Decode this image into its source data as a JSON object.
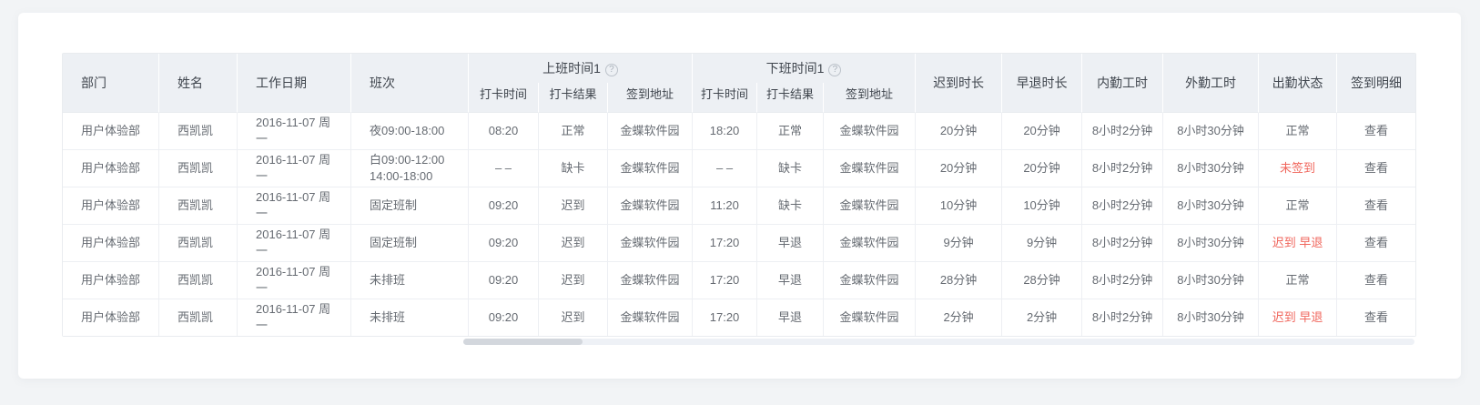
{
  "colors": {
    "page_bg": "#f2f4f6",
    "card_bg": "#ffffff",
    "header_bg": "#edf0f4",
    "header_text": "#3f454d",
    "body_text": "#666b72",
    "status_red": "#f0665c",
    "border": "#e9ecef",
    "border_light": "#edeff3",
    "scroll_track": "#eef1f6",
    "scroll_thumb": "#d3d7dd"
  },
  "icons": {
    "help_glyph": "?"
  },
  "table": {
    "fixed_headers": [
      "部门",
      "姓名",
      "工作日期",
      "班次"
    ],
    "groups": [
      {
        "label": "上班时间1",
        "sub": [
          "打卡时间",
          "打卡结果",
          "签到地址"
        ]
      },
      {
        "label": "下班时间1",
        "sub": [
          "打卡时间",
          "打卡结果",
          "签到地址"
        ]
      }
    ],
    "right_headers": [
      "迟到时长",
      "早退时长",
      "内勤工时",
      "外勤工时",
      "出勤状态",
      "签到明细"
    ],
    "rows": [
      {
        "dept": "用户体验部",
        "name": "西凯凯",
        "date": "2016-11-07 周一",
        "shift": [
          "夜09:00-18:00"
        ],
        "on_time": "08:20",
        "on_result": "正常",
        "on_addr": "金蝶软件园",
        "off_time": "18:20",
        "off_result": "正常",
        "off_addr": "金蝶软件园",
        "late": "20分钟",
        "early": "20分钟",
        "in_hours": "8小时2分钟",
        "out_hours": "8小时30分钟",
        "status": "正常",
        "status_red": false,
        "detail": "查看"
      },
      {
        "dept": "用户体验部",
        "name": "西凯凯",
        "date": "2016-11-07 周一",
        "shift": [
          "白09:00-12:00",
          "14:00-18:00"
        ],
        "on_time": "– –",
        "on_result": "缺卡",
        "on_addr": "金蝶软件园",
        "off_time": "– –",
        "off_result": "缺卡",
        "off_addr": "金蝶软件园",
        "late": "20分钟",
        "early": "20分钟",
        "in_hours": "8小时2分钟",
        "out_hours": "8小时30分钟",
        "status": "未签到",
        "status_red": true,
        "detail": "查看"
      },
      {
        "dept": "用户体验部",
        "name": "西凯凯",
        "date": "2016-11-07 周一",
        "shift": [
          "固定班制"
        ],
        "on_time": "09:20",
        "on_result": "迟到",
        "on_addr": "金蝶软件园",
        "off_time": "11:20",
        "off_result": "缺卡",
        "off_addr": "金蝶软件园",
        "late": "10分钟",
        "early": "10分钟",
        "in_hours": "8小时2分钟",
        "out_hours": "8小时30分钟",
        "status": "正常",
        "status_red": false,
        "detail": "查看"
      },
      {
        "dept": "用户体验部",
        "name": "西凯凯",
        "date": "2016-11-07 周一",
        "shift": [
          "固定班制"
        ],
        "on_time": "09:20",
        "on_result": "迟到",
        "on_addr": "金蝶软件园",
        "off_time": "17:20",
        "off_result": "早退",
        "off_addr": "金蝶软件园",
        "late": "9分钟",
        "early": "9分钟",
        "in_hours": "8小时2分钟",
        "out_hours": "8小时30分钟",
        "status": "迟到 早退",
        "status_red": true,
        "detail": "查看"
      },
      {
        "dept": "用户体验部",
        "name": "西凯凯",
        "date": "2016-11-07 周一",
        "shift": [
          "未排班"
        ],
        "on_time": "09:20",
        "on_result": "迟到",
        "on_addr": "金蝶软件园",
        "off_time": "17:20",
        "off_result": "早退",
        "off_addr": "金蝶软件园",
        "late": "28分钟",
        "early": "28分钟",
        "in_hours": "8小时2分钟",
        "out_hours": "8小时30分钟",
        "status": "正常",
        "status_red": false,
        "detail": "查看"
      },
      {
        "dept": "用户体验部",
        "name": "西凯凯",
        "date": "2016-11-07 周一",
        "shift": [
          "未排班"
        ],
        "on_time": "09:20",
        "on_result": "迟到",
        "on_addr": "金蝶软件园",
        "off_time": "17:20",
        "off_result": "早退",
        "off_addr": "金蝶软件园",
        "late": "2分钟",
        "early": "2分钟",
        "in_hours": "8小时2分钟",
        "out_hours": "8小时30分钟",
        "status": "迟到 早退",
        "status_red": true,
        "detail": "查看"
      }
    ]
  }
}
